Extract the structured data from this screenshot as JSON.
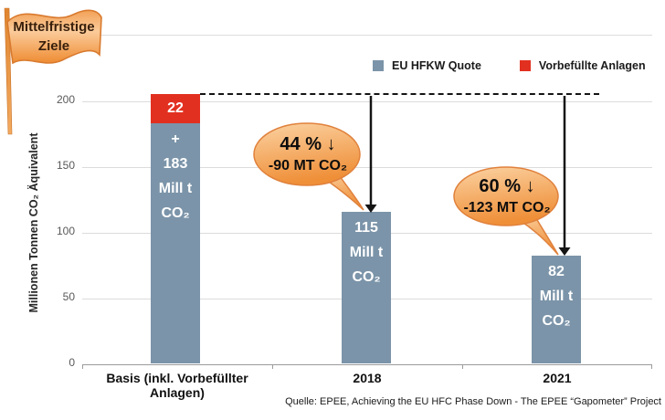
{
  "flag": {
    "line1": "Mittelfristige",
    "line2": "Ziele"
  },
  "legend": [
    {
      "label": "EU HFKW Quote",
      "color": "#7B94A9"
    },
    {
      "label": "Vorbefüllte Anlagen",
      "color": "#E23020"
    }
  ],
  "axis": {
    "ylabel": "Millionen Tonnen CO₂ Äquivalent",
    "yticks": [
      "200",
      "150",
      "100",
      "50",
      "0"
    ]
  },
  "chart_data": {
    "type": "bar",
    "stacked": true,
    "categories": [
      "Basis (inkl. Vorbefüllter Anlagen)",
      "2018",
      "2021"
    ],
    "series": [
      {
        "name": "EU HFKW Quote",
        "color": "#7B94A9",
        "values": [
          183,
          115,
          82
        ]
      },
      {
        "name": "Vorbefüllte Anlagen",
        "color": "#E23020",
        "values": [
          22,
          0,
          0
        ]
      }
    ],
    "ylabel": "Millionen Tonnen CO₂ Äquivalent",
    "yticks": [
      0,
      50,
      100,
      150,
      200
    ],
    "ylim": [
      0,
      250
    ],
    "grid": true,
    "legend_position": "top-right",
    "reference_line": {
      "value": 205,
      "style": "dashed"
    },
    "annotations": [
      {
        "target": "2018",
        "text": "44 % ↓ -90 MT CO₂"
      },
      {
        "target": "2021",
        "text": "60 % ↓ -123 MT CO₂"
      }
    ]
  },
  "bar_labels": [
    {
      "red": "22",
      "lines": [
        "+",
        "183",
        "Mill t",
        "CO₂"
      ]
    },
    {
      "lines": [
        "115",
        "Mill t",
        "CO₂"
      ]
    },
    {
      "lines": [
        "82",
        "Mill t",
        "CO₂"
      ]
    }
  ],
  "bubbles": [
    {
      "line1": "44 % ↓",
      "line2": "-90 MT CO₂"
    },
    {
      "line1": "60 % ↓",
      "line2": "-123 MT CO₂"
    }
  ],
  "footer": {
    "source": "Quelle: EPEE, Achieving the EU HFC Phase Down - The EPEE “Gapometer” Project"
  }
}
